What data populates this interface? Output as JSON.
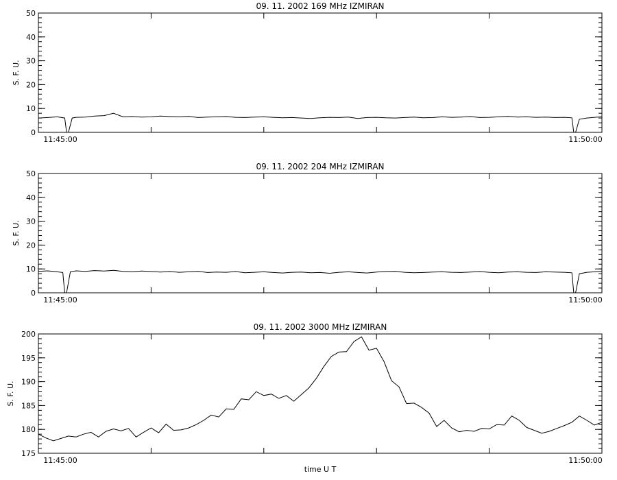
{
  "chart_data": [
    {
      "type": "line",
      "title": "09. 11. 2002   169 MHz   IZMIRAN",
      "xlabel": "",
      "ylabel": "S. F. U.",
      "xlim": [
        "11:45:00",
        "11:50:00"
      ],
      "ylim": [
        0,
        50
      ],
      "yticks": [
        0,
        10,
        20,
        30,
        40,
        50
      ],
      "xtick_labels": [
        "11:45:00",
        "11:50:00"
      ],
      "series": [
        {
          "x_seconds": [
            0,
            5,
            10,
            14,
            15,
            16,
            18,
            20,
            25,
            30,
            35,
            40,
            45,
            50,
            55,
            60,
            65,
            70,
            75,
            80,
            85,
            90,
            95,
            100,
            105,
            110,
            115,
            120,
            125,
            130,
            135,
            140,
            145,
            150,
            155,
            160,
            165,
            170,
            175,
            180,
            185,
            190,
            195,
            200,
            205,
            210,
            215,
            220,
            225,
            230,
            235,
            240,
            245,
            250,
            255,
            260,
            265,
            270,
            275,
            280,
            284,
            285,
            286,
            288,
            292,
            296,
            300
          ],
          "values": [
            6,
            6.2,
            6.5,
            6,
            -1,
            -1,
            6,
            6.3,
            6.4,
            6.8,
            7,
            8,
            6.5,
            6.6,
            6.4,
            6.5,
            6.8,
            6.6,
            6.5,
            6.7,
            6.2,
            6.4,
            6.5,
            6.6,
            6.3,
            6.2,
            6.4,
            6.5,
            6.3,
            6.1,
            6.2,
            6,
            5.8,
            6.1,
            6.3,
            6.2,
            6.4,
            5.8,
            6.2,
            6.3,
            6.1,
            6,
            6.2,
            6.4,
            6.1,
            6.2,
            6.5,
            6.3,
            6.4,
            6.6,
            6.2,
            6.3,
            6.5,
            6.7,
            6.4,
            6.5,
            6.3,
            6.4,
            6.2,
            6.3,
            6.1,
            -1,
            -1,
            5.5,
            6,
            6.3,
            6.5
          ]
        }
      ]
    },
    {
      "type": "line",
      "title": "09. 11. 2002   204 MHz   IZMIRAN",
      "xlabel": "",
      "ylabel": "S. F. U.",
      "xlim": [
        "11:45:00",
        "11:50:00"
      ],
      "ylim": [
        0,
        50
      ],
      "yticks": [
        0,
        10,
        20,
        30,
        40,
        50
      ],
      "xtick_labels": [
        "11:45:00",
        "11:50:00"
      ],
      "series": [
        {
          "x_seconds": [
            0,
            5,
            10,
            13,
            14,
            15,
            17,
            20,
            25,
            30,
            35,
            40,
            45,
            50,
            55,
            60,
            65,
            70,
            75,
            80,
            85,
            90,
            95,
            100,
            105,
            110,
            115,
            120,
            125,
            130,
            135,
            140,
            145,
            150,
            155,
            160,
            165,
            170,
            175,
            180,
            185,
            190,
            195,
            200,
            205,
            210,
            215,
            220,
            225,
            230,
            235,
            240,
            245,
            250,
            255,
            260,
            265,
            270,
            275,
            280,
            284,
            285,
            286,
            288,
            292,
            296,
            300
          ],
          "values": [
            9,
            9.2,
            8.8,
            8.5,
            -1,
            -1,
            8.8,
            9.2,
            9,
            9.3,
            9.1,
            9.4,
            9,
            8.8,
            9.1,
            8.9,
            8.7,
            8.9,
            8.6,
            8.8,
            9,
            8.5,
            8.7,
            8.6,
            8.9,
            8.4,
            8.6,
            8.8,
            8.5,
            8.3,
            8.6,
            8.7,
            8.4,
            8.5,
            8.2,
            8.6,
            8.8,
            8.5,
            8.3,
            8.7,
            8.9,
            9,
            8.6,
            8.4,
            8.5,
            8.7,
            8.8,
            8.6,
            8.5,
            8.7,
            8.9,
            8.6,
            8.4,
            8.7,
            8.8,
            8.6,
            8.5,
            8.8,
            8.7,
            8.6,
            8.4,
            -1,
            -1,
            8,
            8.6,
            8.8,
            9
          ]
        }
      ]
    },
    {
      "type": "line",
      "title": "09. 11. 2002   3000 MHz   IZMIRAN",
      "xlabel": "time  U T",
      "ylabel": "S. F. U.",
      "xlim": [
        "11:45:00",
        "11:50:00"
      ],
      "ylim": [
        175,
        200
      ],
      "yticks": [
        175,
        180,
        185,
        190,
        195,
        200
      ],
      "xtick_labels": [
        "11:45:00",
        "11:50:00"
      ],
      "series": [
        {
          "x_seconds": [
            0,
            4,
            8,
            12,
            16,
            20,
            24,
            28,
            32,
            36,
            40,
            44,
            48,
            52,
            56,
            60,
            64,
            68,
            72,
            76,
            80,
            84,
            88,
            92,
            96,
            100,
            104,
            108,
            112,
            116,
            120,
            124,
            128,
            132,
            136,
            140,
            144,
            148,
            152,
            156,
            160,
            164,
            168,
            172,
            176,
            180,
            184,
            188,
            192,
            196,
            200,
            204,
            208,
            212,
            216,
            220,
            224,
            228,
            232,
            236,
            240,
            244,
            248,
            252,
            256,
            260,
            264,
            268,
            272,
            276,
            280,
            284,
            288,
            292,
            296,
            300
          ],
          "values": [
            179,
            178.2,
            177.6,
            178.1,
            178.6,
            178.4,
            179,
            179.4,
            178.4,
            179.6,
            180.1,
            179.7,
            180.2,
            178.4,
            179.4,
            180.3,
            179.3,
            181.1,
            179.8,
            179.9,
            180.3,
            181,
            181.9,
            183,
            182.6,
            184.3,
            184.2,
            186.4,
            186.2,
            187.9,
            187.1,
            187.4,
            186.5,
            187.1,
            185.9,
            187.3,
            188.7,
            190.7,
            193.2,
            195.3,
            196.2,
            196.3,
            198.4,
            199.4,
            196.6,
            197,
            194.2,
            190.2,
            188.9,
            185.4,
            185.5,
            184.6,
            183.4,
            180.6,
            181.9,
            180.3,
            179.5,
            179.8,
            179.6,
            180.2,
            180.1,
            181,
            180.9,
            182.8,
            181.9,
            180.4,
            179.8,
            179.2,
            179.6,
            180.2,
            180.8,
            181.5,
            182.8,
            181.9,
            180.9,
            181.5
          ]
        }
      ]
    }
  ]
}
